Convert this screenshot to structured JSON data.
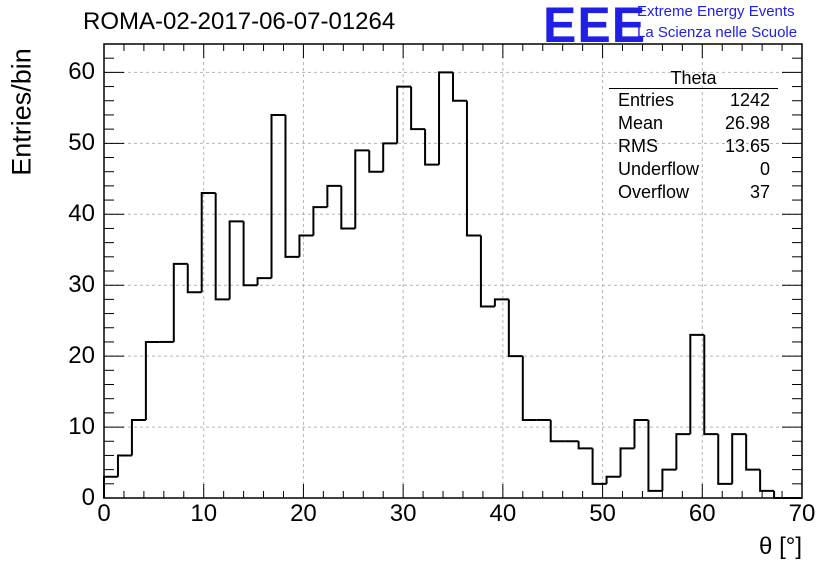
{
  "chart_data": {
    "type": "bar",
    "style": "step-histogram",
    "title": "ROMA-02-2017-06-07-01264",
    "xlabel": "θ [°]",
    "ylabel": "Entries/bin",
    "xlim": [
      0,
      70
    ],
    "ylim": [
      0,
      64
    ],
    "grid": true,
    "x_ticks": [
      "0",
      "10",
      "20",
      "30",
      "40",
      "50",
      "60",
      "70"
    ],
    "y_ticks": [
      "0",
      "10",
      "20",
      "30",
      "40",
      "50",
      "60"
    ],
    "bin_width": 1.4,
    "bin_edges_start": 0,
    "values": [
      3,
      6,
      11,
      22,
      22,
      33,
      29,
      43,
      28,
      39,
      30,
      31,
      54,
      34,
      37,
      41,
      44,
      38,
      49,
      46,
      50,
      58,
      52,
      47,
      60,
      56,
      37,
      27,
      28,
      20,
      11,
      11,
      8,
      8,
      7,
      2,
      3,
      7,
      11,
      1,
      4,
      9,
      23,
      9,
      2,
      9,
      4,
      1,
      0,
      0
    ],
    "series_color": "#000000"
  },
  "stats_box": {
    "title": "Theta",
    "rows": [
      {
        "label": "Entries",
        "value": "1242"
      },
      {
        "label": "Mean",
        "value": "26.98"
      },
      {
        "label": "RMS",
        "value": "13.65"
      },
      {
        "label": "Underflow",
        "value": "0"
      },
      {
        "label": "Overflow",
        "value": "37"
      }
    ]
  },
  "logo": {
    "mark": "EEE",
    "line1": "Extreme Energy Events",
    "line2": "La Scienza nelle Scuole",
    "color": "#1f1fe6"
  }
}
